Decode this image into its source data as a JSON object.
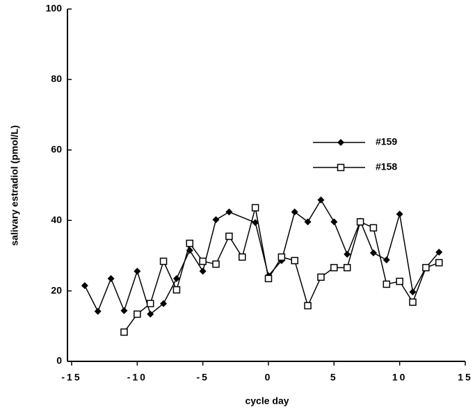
{
  "chart_data": {
    "type": "line",
    "xlabel": "cycle  day",
    "ylabel": "salivary   estradiol   (pmol/L)",
    "xlim": [
      -15,
      15
    ],
    "xticks": [
      -15,
      -10,
      -5,
      0,
      5,
      10,
      15
    ],
    "ylim": [
      0,
      100
    ],
    "yticks": [
      0,
      20,
      40,
      60,
      80,
      100
    ],
    "grid": false,
    "legend": "right",
    "series": [
      {
        "name": "#159",
        "color": "#000000",
        "marker": "diamond",
        "x": [
          -14,
          -13,
          -12,
          -11,
          -10,
          -9,
          -8,
          -7,
          -6,
          -5,
          -4,
          -3,
          -1,
          0,
          1,
          2,
          3,
          4,
          5,
          6,
          7,
          8,
          9,
          10,
          11,
          12,
          13
        ],
        "values": [
          21.5,
          14.2,
          23.5,
          14.4,
          25.6,
          13.4,
          16.4,
          23.5,
          31.5,
          25.6,
          40.2,
          42.4,
          39.4,
          24.3,
          28.6,
          42.4,
          39.6,
          45.8,
          39.6,
          30.4,
          39.8,
          30.8,
          28.8,
          41.8,
          19.7,
          26.6,
          31
        ]
      },
      {
        "name": "#158",
        "color": "#000000",
        "marker": "square",
        "x": [
          -11,
          -10,
          -9,
          -8,
          -7,
          -6,
          -5,
          -4,
          -3,
          -2,
          -1,
          0,
          1,
          2,
          3,
          4,
          5,
          6,
          7,
          8,
          9,
          10,
          11,
          12,
          13
        ],
        "values": [
          8.3,
          13.4,
          16.4,
          28.4,
          20.3,
          33.5,
          28.4,
          27.6,
          35.5,
          29.6,
          43.6,
          23.5,
          29.6,
          28.6,
          15.8,
          23.9,
          26.6,
          26.6,
          39.6,
          37.9,
          21.9,
          22.7,
          16.8,
          26.6,
          28
        ]
      }
    ]
  }
}
